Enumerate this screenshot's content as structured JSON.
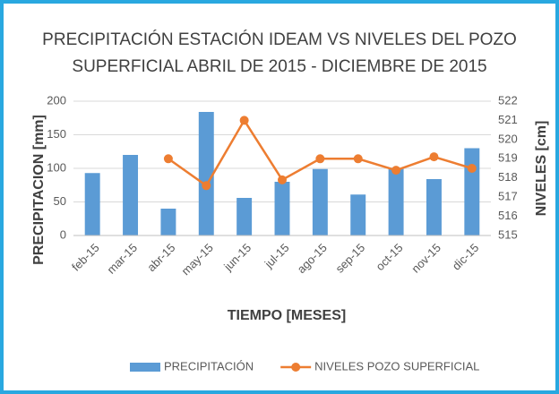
{
  "chart_data": {
    "type": "bar_line",
    "title": [
      "PRECIPITACIÓN ESTACIÓN IDEAM VS NIVELES DEL POZO",
      "SUPERFICIAL ABRIL DE 2015 - DICIEMBRE DE 2015"
    ],
    "x_label": "TIEMPO [MESES]",
    "y_label": "PRECIPITACION [mm]",
    "y2_label": "NIVELES [cm]",
    "categories": [
      "feb-15",
      "mar-15",
      "abr-15",
      "may-15",
      "jun-15",
      "jul-15",
      "ago-15",
      "sep-15",
      "oct-15",
      "nov-15",
      "dic-15"
    ],
    "series": [
      {
        "name": "PRECIPITACIÓN",
        "color": "#5b9bd5",
        "kind": "bar",
        "values": [
          93,
          120,
          40,
          184,
          56,
          80,
          99,
          61,
          101,
          84,
          130
        ]
      },
      {
        "name": "NIVELES POZO SUPERFICIAL",
        "color": "#ed7d31",
        "kind": "line",
        "axis": "y2",
        "values": [
          null,
          null,
          519,
          517.6,
          521,
          517.9,
          519,
          519,
          518.4,
          519.1,
          518.5
        ]
      }
    ],
    "ylim": [
      0,
      200
    ],
    "yticks": [
      0,
      50,
      100,
      150,
      200
    ],
    "y2lim": [
      515,
      522
    ],
    "y2ticks": [
      515,
      516,
      517,
      518,
      519,
      520,
      521,
      522
    ],
    "grid": true,
    "legend": "bottom"
  }
}
